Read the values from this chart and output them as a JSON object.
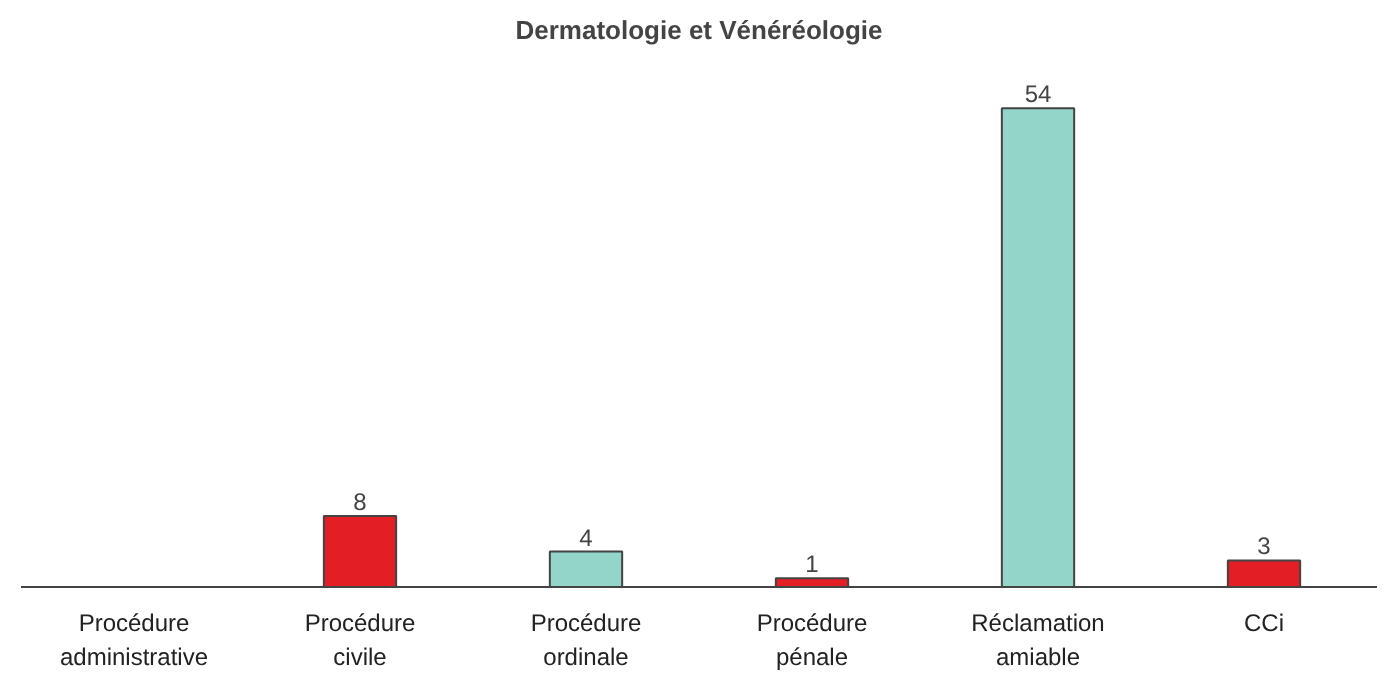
{
  "chart_data": {
    "type": "bar",
    "title": "Dermatologie et Vénéréologie",
    "categories": [
      "Procédure administrative",
      "Procédure civile",
      "Procédure ordinale",
      "Procédure pénale",
      "Réclamation amiable",
      "CCi"
    ],
    "values": [
      null,
      8,
      4,
      1,
      54,
      3
    ],
    "colors": [
      "#e31e24",
      "#e31e24",
      "#93d5c8",
      "#e31e24",
      "#93d5c8",
      "#e31e24"
    ],
    "data_labels": true,
    "grid": false,
    "tick_labels": "x"
  }
}
